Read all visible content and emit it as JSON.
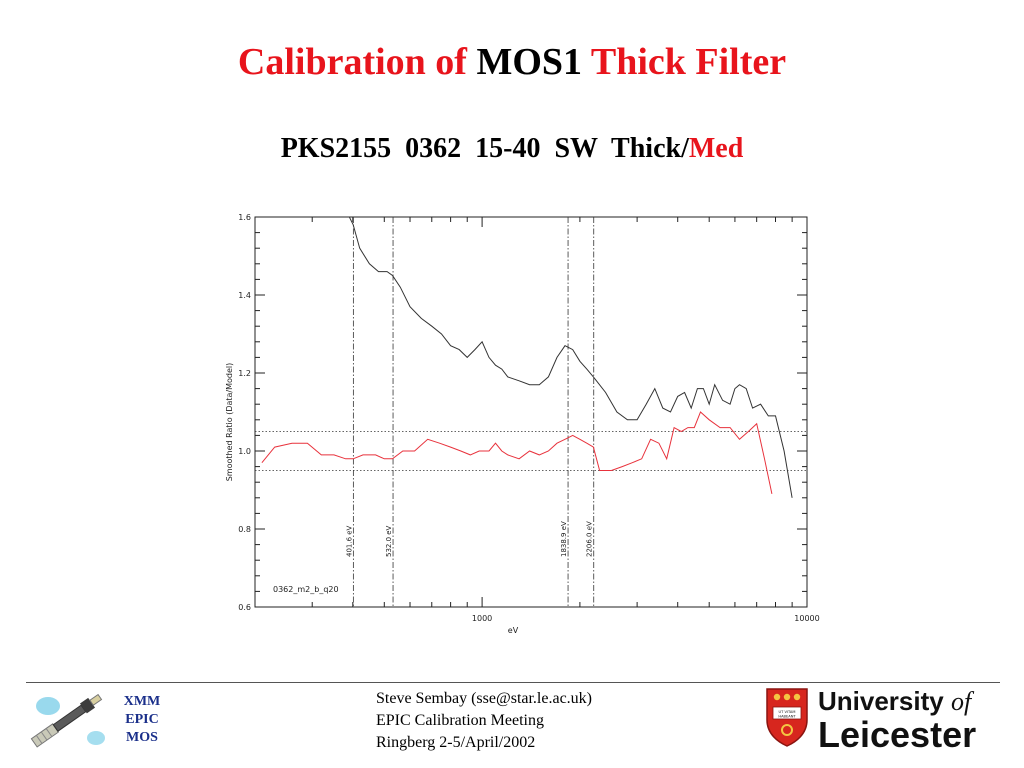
{
  "title": {
    "part1": "Calibration of",
    "part2": "MOS1",
    "part3": "Thick Filter"
  },
  "subtitle": {
    "main": "PKS2155  0362  15-40  SW  Thick/",
    "accent": "Med"
  },
  "chart_data": {
    "type": "line",
    "xscale": "log",
    "xlim": [
      200,
      10000
    ],
    "ylim": [
      0.6,
      1.6
    ],
    "xlabel": "eV",
    "ylabel": "Smoothed Ratio (Data/Model)",
    "xticks": [
      {
        "value": 1000,
        "label": "1000"
      },
      {
        "value": 10000,
        "label": "10000"
      }
    ],
    "yticks": [
      {
        "value": 0.6,
        "label": "0.6"
      },
      {
        "value": 0.8,
        "label": "0.8"
      },
      {
        "value": 1.0,
        "label": "1.0"
      },
      {
        "value": 1.2,
        "label": "1.2"
      },
      {
        "value": 1.4,
        "label": "1.4"
      },
      {
        "value": 1.6,
        "label": "1.6"
      }
    ],
    "hlines": [
      1.05,
      0.95
    ],
    "vlines": [
      {
        "x": 401.6,
        "label": "401.6 eV"
      },
      {
        "x": 532.0,
        "label": "532.0 eV"
      },
      {
        "x": 1838.9,
        "label": "1838.9 eV"
      },
      {
        "x": 2206.0,
        "label": "2206.0 eV"
      }
    ],
    "annotation": "0362_m2_b_q20",
    "series": [
      {
        "color": "#333333",
        "x": [
          385,
          401,
          420,
          450,
          480,
          510,
          530,
          560,
          600,
          650,
          700,
          750,
          800,
          850,
          900,
          950,
          1000,
          1050,
          1100,
          1150,
          1200,
          1300,
          1400,
          1500,
          1600,
          1700,
          1800,
          1900,
          2000,
          2100,
          2200,
          2400,
          2600,
          2800,
          3000,
          3200,
          3400,
          3600,
          3800,
          4000,
          4200,
          4400,
          4600,
          4800,
          5000,
          5200,
          5500,
          5800,
          6000,
          6200,
          6500,
          6800,
          7200,
          7600,
          8000,
          8500,
          9000
        ],
        "y": [
          1.61,
          1.58,
          1.52,
          1.48,
          1.46,
          1.46,
          1.45,
          1.42,
          1.37,
          1.34,
          1.32,
          1.3,
          1.27,
          1.26,
          1.24,
          1.26,
          1.28,
          1.24,
          1.22,
          1.21,
          1.19,
          1.18,
          1.17,
          1.17,
          1.19,
          1.24,
          1.27,
          1.26,
          1.23,
          1.21,
          1.19,
          1.15,
          1.1,
          1.08,
          1.08,
          1.12,
          1.16,
          1.11,
          1.1,
          1.14,
          1.15,
          1.11,
          1.16,
          1.16,
          1.12,
          1.17,
          1.13,
          1.12,
          1.16,
          1.17,
          1.16,
          1.11,
          1.12,
          1.09,
          1.09,
          1.0,
          0.88
        ]
      },
      {
        "color": "#e8323c",
        "x": [
          210,
          230,
          260,
          290,
          320,
          350,
          380,
          401,
          430,
          470,
          500,
          530,
          570,
          620,
          680,
          740,
          800,
          860,
          920,
          980,
          1050,
          1100,
          1150,
          1200,
          1300,
          1400,
          1500,
          1600,
          1700,
          1800,
          1900,
          2000,
          2100,
          2200,
          2300,
          2500,
          2700,
          2900,
          3100,
          3300,
          3500,
          3700,
          3900,
          4100,
          4300,
          4500,
          4700,
          5000,
          5400,
          5800,
          6200,
          6600,
          7000,
          7400,
          7800
        ],
        "y": [
          0.97,
          1.01,
          1.02,
          1.02,
          0.99,
          0.99,
          0.98,
          0.98,
          0.99,
          0.99,
          0.98,
          0.98,
          1.0,
          1.0,
          1.03,
          1.02,
          1.01,
          1.0,
          0.99,
          1.0,
          1.0,
          1.02,
          1.0,
          0.99,
          0.98,
          1.0,
          0.99,
          1.0,
          1.02,
          1.03,
          1.04,
          1.03,
          1.02,
          1.01,
          0.95,
          0.95,
          0.96,
          0.97,
          0.98,
          1.03,
          1.02,
          0.98,
          1.06,
          1.05,
          1.06,
          1.06,
          1.1,
          1.08,
          1.06,
          1.06,
          1.03,
          1.05,
          1.07,
          0.98,
          0.89
        ]
      }
    ]
  },
  "footer": {
    "xmm_lines": [
      "XMM",
      "EPIC",
      "MOS"
    ],
    "credit_lines": [
      "Steve Sembay (sse@star.le.ac.uk)",
      "EPIC Calibration Meeting",
      "Ringberg 2-5/April/2002"
    ],
    "university": {
      "line1": "University",
      "of": "of",
      "line2": "Leicester"
    },
    "crest_motto": "UT VITAM HABEANT"
  },
  "colors": {
    "title_red": "#e8141c",
    "xmm_blue": "#1a2f8a",
    "crest_red": "#d7261e"
  }
}
